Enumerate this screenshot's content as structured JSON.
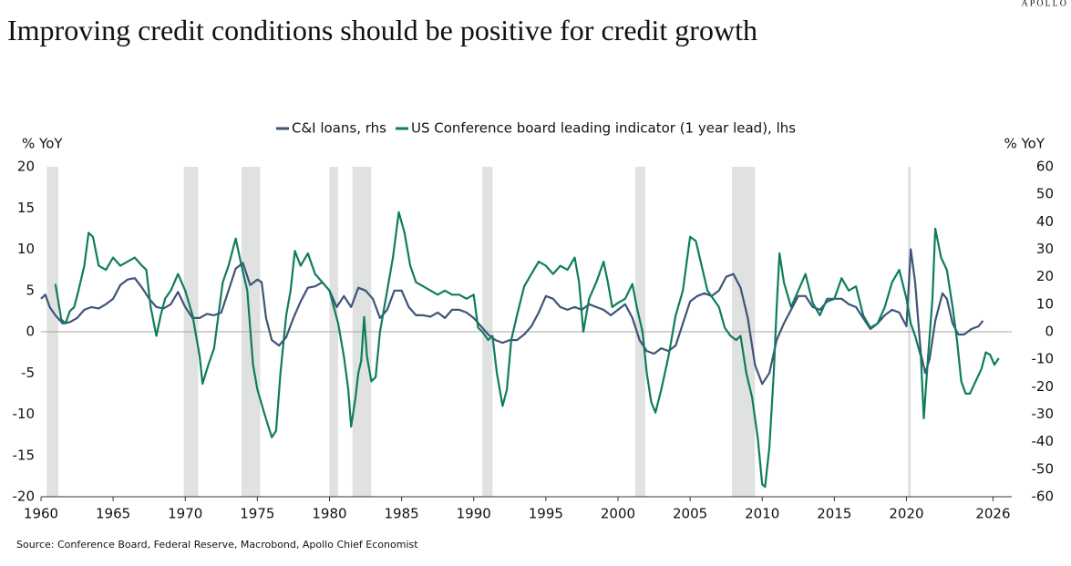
{
  "brand": "APOLLO",
  "chart_data": {
    "type": "line",
    "title": "Improving credit conditions should be positive for credit growth",
    "source": "Source: Conference Board, Federal Reserve, Macrobond, Apollo Chief Economist",
    "y_label": "% YoY",
    "y2_label": "% YoY",
    "xlim": [
      1960,
      2027.3
    ],
    "xticks": [
      1960,
      1965,
      1970,
      1975,
      1980,
      1985,
      1990,
      1995,
      2000,
      2005,
      2010,
      2015,
      2020,
      2026
    ],
    "ylim": [
      -20,
      20
    ],
    "yticks": [
      -20,
      -15,
      -10,
      -5,
      0,
      5,
      10,
      15,
      20
    ],
    "y2lim": [
      -60,
      60
    ],
    "y2ticks": [
      -60,
      -50,
      -40,
      -30,
      -20,
      -10,
      0,
      10,
      20,
      30,
      40,
      50,
      60
    ],
    "recession_color": "#e0e1e1",
    "recessions": [
      [
        1960.4,
        1961.2
      ],
      [
        1969.9,
        1970.9
      ],
      [
        1973.9,
        1975.2
      ],
      [
        1980.0,
        1980.6
      ],
      [
        1981.6,
        1982.9
      ],
      [
        1990.6,
        1991.3
      ],
      [
        2001.2,
        2001.9
      ],
      [
        2007.9,
        2009.5
      ],
      [
        2020.1,
        2020.3
      ]
    ],
    "series": [
      {
        "name": "C&I loans, rhs",
        "color": "#3f5478",
        "axis": "y2",
        "x": [
          1960.0,
          1960.3,
          1960.6,
          1961.0,
          1961.5,
          1962.0,
          1962.5,
          1963.0,
          1963.5,
          1964.0,
          1964.5,
          1965.0,
          1965.5,
          1966.0,
          1966.5,
          1967.0,
          1967.5,
          1968.0,
          1968.5,
          1969.0,
          1969.5,
          1970.0,
          1970.5,
          1971.0,
          1971.5,
          1972.0,
          1972.5,
          1973.0,
          1973.5,
          1974.0,
          1974.5,
          1975.0,
          1975.3,
          1975.6,
          1976.0,
          1976.5,
          1977.0,
          1977.5,
          1978.0,
          1978.5,
          1979.0,
          1979.5,
          1980.0,
          1980.5,
          1981.0,
          1981.5,
          1982.0,
          1982.5,
          1983.0,
          1983.5,
          1984.0,
          1984.5,
          1985.0,
          1985.5,
          1986.0,
          1986.5,
          1987.0,
          1987.5,
          1988.0,
          1988.5,
          1989.0,
          1989.5,
          1990.0,
          1990.5,
          1991.0,
          1991.5,
          1992.0,
          1992.5,
          1993.0,
          1993.5,
          1994.0,
          1994.5,
          1995.0,
          1995.5,
          1996.0,
          1996.5,
          1997.0,
          1997.5,
          1998.0,
          1998.5,
          1999.0,
          1999.5,
          2000.0,
          2000.5,
          2001.0,
          2001.5,
          2002.0,
          2002.5,
          2003.0,
          2003.5,
          2004.0,
          2004.5,
          2005.0,
          2005.5,
          2006.0,
          2006.5,
          2007.0,
          2007.5,
          2008.0,
          2008.5,
          2009.0,
          2009.5,
          2010.0,
          2010.5,
          2011.0,
          2011.5,
          2012.0,
          2012.5,
          2013.0,
          2013.5,
          2014.0,
          2014.5,
          2015.0,
          2015.5,
          2016.0,
          2016.5,
          2017.0,
          2017.5,
          2018.0,
          2018.5,
          2019.0,
          2019.5,
          2020.0,
          2020.3,
          2020.6,
          2021.0,
          2021.3,
          2021.6,
          2022.0,
          2022.5,
          2022.8,
          2023.2,
          2023.6,
          2024.0,
          2024.5,
          2025.0,
          2025.3
        ],
        "values": [
          12,
          13.5,
          9,
          6,
          3,
          3.5,
          5,
          8,
          9,
          8.5,
          10,
          12,
          17,
          19,
          19.5,
          16,
          12,
          9,
          8.5,
          10,
          14.5,
          9,
          5,
          5,
          6.5,
          6,
          7,
          15,
          23,
          25,
          17,
          19,
          18,
          5,
          -3,
          -5,
          -2,
          5,
          11,
          16,
          16.5,
          18,
          15,
          9,
          13,
          9,
          16,
          15,
          12,
          5,
          8,
          15,
          15,
          9,
          6,
          6,
          5.5,
          7,
          5,
          8,
          8,
          7,
          5,
          2,
          -1,
          -3,
          -4,
          -3,
          -3,
          -1,
          2,
          7,
          13,
          12,
          9,
          8,
          9,
          8,
          10,
          9,
          8,
          6,
          8,
          10,
          5,
          -3,
          -7,
          -8,
          -6,
          -7,
          -5,
          3,
          11,
          13,
          14,
          13,
          15,
          20,
          21,
          16,
          5,
          -12,
          -19,
          -15,
          -3,
          3,
          8,
          13,
          13,
          9,
          8,
          11,
          12,
          12,
          10,
          9,
          5,
          1,
          3,
          6,
          8,
          7,
          2,
          30,
          18,
          -8,
          -15,
          -10,
          4,
          14,
          12,
          3,
          -1,
          -1,
          1,
          2,
          4
        ]
      },
      {
        "name": "US Conference board leading indicator (1 year lead), lhs",
        "color": "#0e7d5e",
        "x": [
          1961.0,
          1961.4,
          1961.7,
          1962.0,
          1962.3,
          1962.6,
          1963.0,
          1963.3,
          1963.6,
          1964.0,
          1964.5,
          1965.0,
          1965.5,
          1966.0,
          1966.5,
          1967.0,
          1967.3,
          1967.6,
          1968.0,
          1968.3,
          1968.6,
          1969.0,
          1969.5,
          1970.0,
          1970.5,
          1971.0,
          1971.2,
          1971.6,
          1972.0,
          1972.3,
          1972.6,
          1973.0,
          1973.5,
          1973.9,
          1974.3,
          1974.7,
          1975.0,
          1975.5,
          1976.0,
          1976.3,
          1976.6,
          1977.0,
          1977.3,
          1977.6,
          1978.0,
          1978.5,
          1979.0,
          1979.5,
          1980.0,
          1980.3,
          1980.6,
          1981.0,
          1981.3,
          1981.5,
          1981.8,
          1982.0,
          1982.2,
          1982.4,
          1982.6,
          1982.9,
          1983.2,
          1983.5,
          1984.0,
          1984.4,
          1984.8,
          1985.2,
          1985.6,
          1986.0,
          1986.5,
          1987.0,
          1987.5,
          1988.0,
          1988.5,
          1989.0,
          1989.5,
          1990.0,
          1990.3,
          1990.6,
          1991.0,
          1991.3,
          1991.6,
          1992.0,
          1992.3,
          1992.6,
          1993.0,
          1993.5,
          1994.0,
          1994.5,
          1995.0,
          1995.5,
          1996.0,
          1996.5,
          1997.0,
          1997.3,
          1997.6,
          1998.0,
          1998.5,
          1999.0,
          1999.3,
          1999.6,
          2000.0,
          2000.5,
          2001.0,
          2001.3,
          2001.7,
          2002.0,
          2002.3,
          2002.6,
          2003.0,
          2003.5,
          2004.0,
          2004.5,
          2005.0,
          2005.4,
          2005.8,
          2006.2,
          2006.6,
          2007.0,
          2007.4,
          2007.8,
          2008.2,
          2008.5,
          2008.9,
          2009.3,
          2009.7,
          2010.0,
          2010.2,
          2010.5,
          2010.8,
          2011.0,
          2011.2,
          2011.5,
          2012.0,
          2012.5,
          2013.0,
          2013.5,
          2014.0,
          2014.5,
          2015.0,
          2015.5,
          2016.0,
          2016.5,
          2017.0,
          2017.5,
          2018.0,
          2018.5,
          2019.0,
          2019.5,
          2020.0,
          2020.3,
          2020.6,
          2021.0,
          2021.2,
          2021.5,
          2021.8,
          2022.0,
          2022.4,
          2022.8,
          2023.2,
          2023.5,
          2023.8,
          2024.1,
          2024.4,
          2024.8,
          2025.2,
          2025.5,
          2025.8,
          2026.1,
          2026.4
        ],
        "values": [
          5.8,
          1.5,
          1.0,
          2.5,
          3.0,
          5.0,
          8.0,
          12.0,
          11.5,
          8.0,
          7.5,
          9.0,
          8.0,
          8.5,
          9.0,
          8.0,
          7.5,
          3.0,
          -0.5,
          2.0,
          4.0,
          5.0,
          7.0,
          5.0,
          2.0,
          -3.0,
          -6.3,
          -4.0,
          -2.0,
          2.0,
          6.0,
          8.0,
          11.3,
          8.0,
          5.0,
          -4.0,
          -7.0,
          -10.0,
          -12.8,
          -12.0,
          -5.0,
          2.0,
          5.0,
          9.8,
          8.0,
          9.5,
          7.0,
          6.0,
          5.0,
          3.0,
          1.0,
          -3.0,
          -7.0,
          -11.5,
          -8.0,
          -5.0,
          -3.5,
          1.8,
          -3.0,
          -6.0,
          -5.5,
          0.0,
          5.0,
          9.0,
          14.5,
          12.0,
          8.0,
          6.0,
          5.5,
          5.0,
          4.5,
          5.0,
          4.5,
          4.5,
          4.0,
          4.5,
          0.5,
          0.0,
          -1.0,
          -0.5,
          -5.0,
          -9.0,
          -7.0,
          -1.0,
          2.0,
          5.5,
          7.0,
          8.5,
          8.0,
          7.0,
          8.0,
          7.5,
          9.0,
          6.0,
          0.0,
          4.0,
          6.0,
          8.5,
          6.0,
          3.0,
          3.5,
          4.0,
          5.8,
          3.0,
          0.0,
          -5.0,
          -8.5,
          -9.8,
          -7.0,
          -3.0,
          2.0,
          5.0,
          11.5,
          11.0,
          8.0,
          5.0,
          4.0,
          3.0,
          0.5,
          -0.5,
          -1.0,
          -0.5,
          -5.0,
          -8.0,
          -13.0,
          -18.5,
          -18.8,
          -14.0,
          -5.0,
          3.0,
          9.5,
          6.0,
          3.0,
          5.0,
          7.0,
          3.5,
          2.0,
          4.0,
          4.0,
          6.5,
          5.0,
          5.5,
          2.0,
          0.5,
          1.0,
          3.0,
          6.0,
          7.5,
          4.0,
          1.0,
          -0.5,
          -3.0,
          -10.5,
          -3.0,
          4.0,
          12.5,
          9.0,
          7.5,
          3.0,
          -1.0,
          -6.0,
          -7.5,
          -7.5,
          -6.0,
          -4.5,
          -2.5,
          -2.8,
          -4.0,
          -3.2
        ]
      }
    ]
  }
}
